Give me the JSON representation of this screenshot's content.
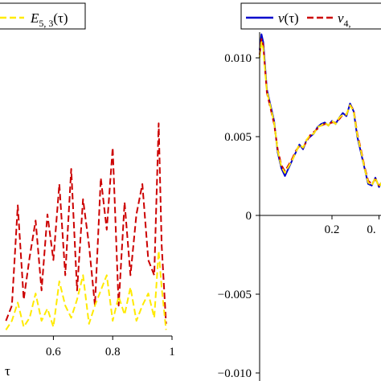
{
  "chart_data": [
    {
      "type": "line",
      "panel": "left",
      "xlabel": "τ",
      "ylabel": "",
      "xlim": [
        0.42,
        1.0
      ],
      "ylim": [
        0,
        1
      ],
      "x_ticks": [
        "0.6",
        "0.8",
        "1"
      ],
      "legend": {
        "position": "top",
        "entries": [
          {
            "label": "E",
            "sub": "5, 3",
            "arg": "(τ)"
          }
        ]
      },
      "series": [
        {
          "name": "E5,3(τ)",
          "color": "#ffea00",
          "style": "dash",
          "x": [
            0.44,
            0.46,
            0.48,
            0.5,
            0.52,
            0.54,
            0.56,
            0.58,
            0.6,
            0.62,
            0.64,
            0.66,
            0.68,
            0.7,
            0.72,
            0.74,
            0.76,
            0.78,
            0.8,
            0.82,
            0.84,
            0.86,
            0.88,
            0.9,
            0.92,
            0.94,
            0.955,
            0.965,
            0.98
          ],
          "y": [
            0.02,
            0.05,
            0.11,
            0.03,
            0.06,
            0.14,
            0.05,
            0.09,
            0.03,
            0.18,
            0.1,
            0.06,
            0.12,
            0.2,
            0.04,
            0.1,
            0.15,
            0.2,
            0.05,
            0.13,
            0.07,
            0.16,
            0.05,
            0.1,
            0.14,
            0.06,
            0.28,
            0.16,
            0.02
          ]
        },
        {
          "name": "red-dashed-series",
          "color": "#cc0000",
          "style": "dash",
          "x": [
            0.44,
            0.46,
            0.48,
            0.5,
            0.52,
            0.54,
            0.56,
            0.58,
            0.6,
            0.62,
            0.64,
            0.66,
            0.68,
            0.7,
            0.72,
            0.74,
            0.76,
            0.78,
            0.8,
            0.82,
            0.84,
            0.86,
            0.88,
            0.9,
            0.92,
            0.94,
            0.955,
            0.965,
            0.98
          ],
          "y": [
            0.05,
            0.1,
            0.43,
            0.12,
            0.26,
            0.38,
            0.15,
            0.4,
            0.25,
            0.5,
            0.2,
            0.55,
            0.15,
            0.45,
            0.3,
            0.1,
            0.52,
            0.35,
            0.62,
            0.1,
            0.44,
            0.2,
            0.4,
            0.5,
            0.25,
            0.2,
            0.7,
            0.3,
            0.04
          ]
        }
      ]
    },
    {
      "type": "line",
      "panel": "right",
      "xlabel": "",
      "ylabel": "",
      "xlim": [
        0,
        0.34
      ],
      "ylim": [
        -0.01,
        0.0125
      ],
      "x_ticks": [
        "0.2",
        "0."
      ],
      "y_ticks": [
        "0.010",
        "0.005",
        "0",
        "−0.005",
        "−0.010"
      ],
      "legend": {
        "position": "top",
        "entries": [
          {
            "label": "v",
            "arg": "(τ)"
          },
          {
            "label": "v",
            "sub": "4,",
            "arg": ""
          }
        ]
      },
      "series": [
        {
          "name": "v(τ)",
          "color": "#0000cc",
          "style": "solid",
          "x": [
            0.0,
            0.005,
            0.01,
            0.02,
            0.03,
            0.04,
            0.05,
            0.06,
            0.07,
            0.08,
            0.09,
            0.1,
            0.11,
            0.12,
            0.13,
            0.14,
            0.15,
            0.16,
            0.17,
            0.18,
            0.19,
            0.2,
            0.21,
            0.22,
            0.23,
            0.24,
            0.25,
            0.26,
            0.27,
            0.28,
            0.29,
            0.3,
            0.31,
            0.32,
            0.33,
            0.34
          ],
          "y": [
            0.0105,
            0.0115,
            0.011,
            0.008,
            0.007,
            0.006,
            0.004,
            0.003,
            0.0025,
            0.003,
            0.0035,
            0.004,
            0.0045,
            0.0042,
            0.0048,
            0.005,
            0.0052,
            0.0056,
            0.0058,
            0.0059,
            0.0057,
            0.006,
            0.0058,
            0.0062,
            0.0065,
            0.0063,
            0.0071,
            0.0066,
            0.005,
            0.004,
            0.003,
            0.002,
            0.0019,
            0.0024,
            0.0018,
            0.0022
          ]
        },
        {
          "name": "v4,...",
          "color": "#cc0000",
          "style": "dash",
          "x": [
            0.0,
            0.005,
            0.01,
            0.02,
            0.03,
            0.04,
            0.05,
            0.06,
            0.07,
            0.08,
            0.09,
            0.1,
            0.11,
            0.12,
            0.13,
            0.14,
            0.15,
            0.16,
            0.17,
            0.18,
            0.19,
            0.2,
            0.21,
            0.22,
            0.23,
            0.24,
            0.25,
            0.26,
            0.27,
            0.28,
            0.29,
            0.3,
            0.31,
            0.32,
            0.33,
            0.34
          ],
          "y": [
            0.0102,
            0.0112,
            0.0108,
            0.0078,
            0.0068,
            0.0058,
            0.0042,
            0.0032,
            0.0028,
            0.0032,
            0.0036,
            0.0041,
            0.0044,
            0.0043,
            0.0047,
            0.0051,
            0.0053,
            0.0055,
            0.0057,
            0.0058,
            0.0058,
            0.0059,
            0.0059,
            0.0061,
            0.0064,
            0.0064,
            0.007,
            0.0067,
            0.0052,
            0.0042,
            0.0031,
            0.0022,
            0.002,
            0.0023,
            0.0019,
            0.0021
          ]
        },
        {
          "name": "yellow-dashed-series",
          "color": "#ffea00",
          "style": "dash",
          "x": [
            0.0,
            0.005,
            0.01,
            0.02,
            0.03,
            0.04,
            0.05,
            0.06,
            0.07,
            0.08,
            0.09,
            0.1,
            0.11,
            0.12,
            0.13,
            0.14,
            0.15,
            0.16,
            0.17,
            0.18,
            0.19,
            0.2,
            0.21,
            0.22,
            0.23,
            0.24,
            0.25,
            0.26,
            0.27,
            0.28,
            0.29,
            0.3,
            0.31,
            0.32,
            0.33,
            0.34
          ],
          "y": [
            0.01,
            0.011,
            0.0106,
            0.0079,
            0.0069,
            0.0059,
            0.0041,
            0.0031,
            0.0027,
            0.0031,
            0.0035,
            0.004,
            0.0045,
            0.0043,
            0.0048,
            0.0051,
            0.0052,
            0.0056,
            0.0057,
            0.0059,
            0.0057,
            0.006,
            0.0058,
            0.0062,
            0.0064,
            0.0064,
            0.007,
            0.0066,
            0.0051,
            0.0041,
            0.003,
            0.0021,
            0.0019,
            0.0024,
            0.0018,
            0.0022
          ]
        }
      ]
    }
  ]
}
